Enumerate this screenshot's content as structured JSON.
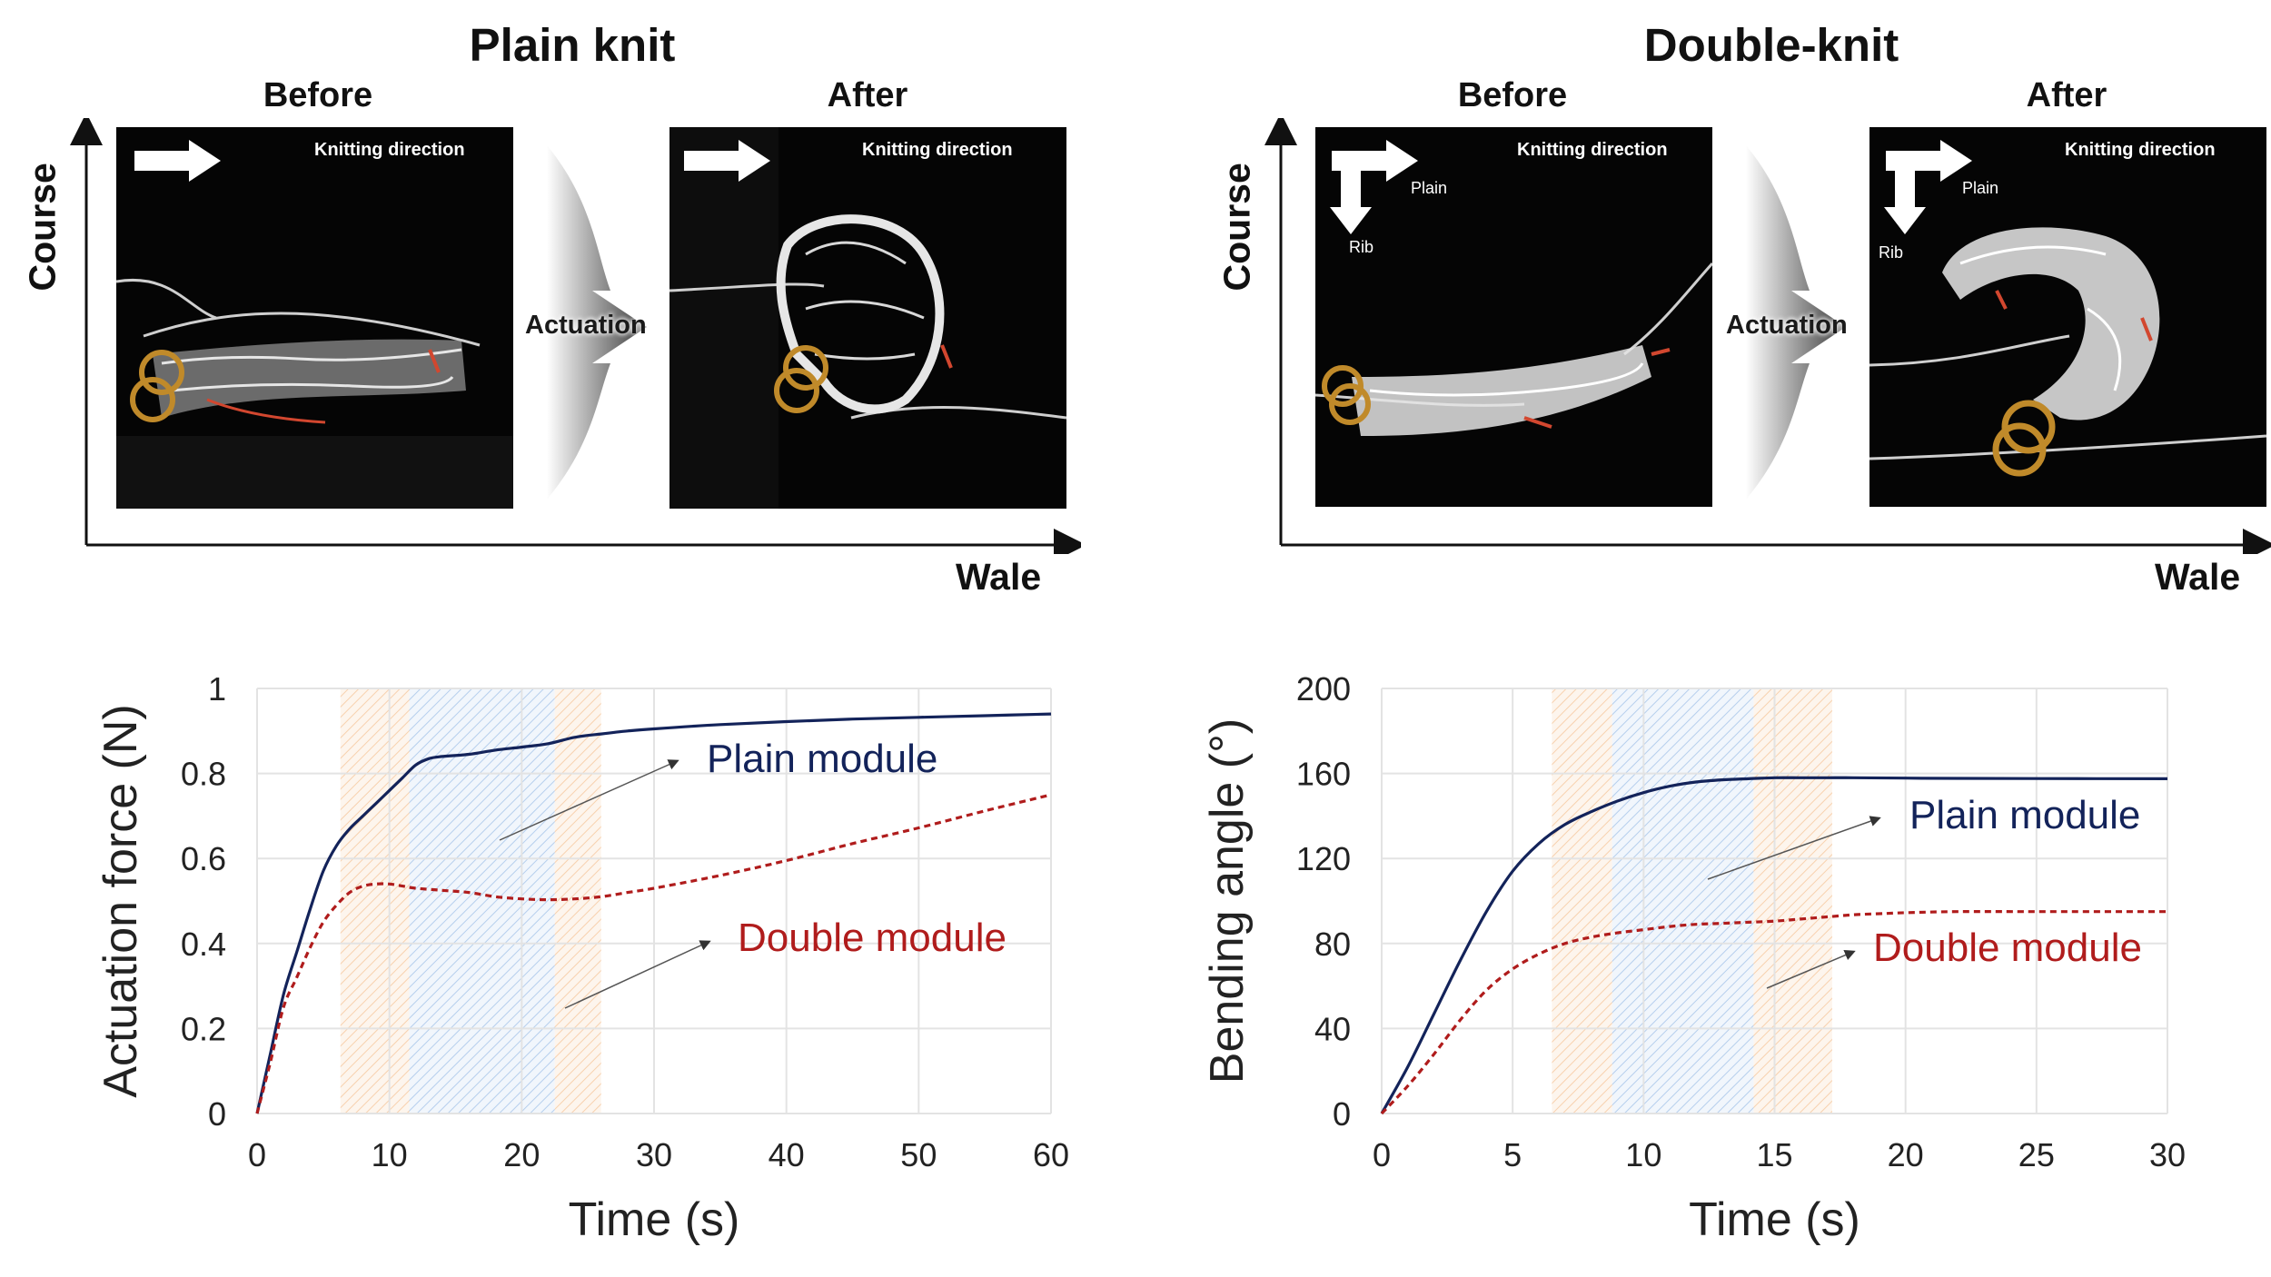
{
  "panels": [
    {
      "title": "Plain knit",
      "before_label": "Before",
      "after_label": "After",
      "course_label": "Course",
      "wale_label": "Wale",
      "actuation_label": "Actuation",
      "knitting_direction": "Knitting direction"
    },
    {
      "title": "Double-knit",
      "before_label": "Before",
      "after_label": "After",
      "course_label": "Course",
      "wale_label": "Wale",
      "actuation_label": "Actuation",
      "knitting_direction": "Knitting direction",
      "plain_label": "Plain",
      "rib_label": "Rib"
    }
  ],
  "colors": {
    "plain_series": "#13235a",
    "double_series": "#b01c1c",
    "band_orange": "#f6c9a0",
    "band_blue": "#a9c6ea",
    "grid": "#e3e3e3"
  },
  "chart_data": [
    {
      "type": "line",
      "xlabel": "Time (s)",
      "ylabel": "Actuation force (N)",
      "xlim": [
        0,
        60
      ],
      "ylim": [
        0,
        1
      ],
      "xticks": [
        0,
        10,
        20,
        30,
        40,
        50,
        60
      ],
      "yticks": [
        0,
        0.2,
        0.4,
        0.6,
        0.8,
        1
      ],
      "ytick_labels": [
        "0",
        "0.2",
        "0.4",
        "0.6",
        "0.8",
        "1"
      ],
      "grid": true,
      "bands": [
        {
          "x0": 6.3,
          "x1": 11.5,
          "color": "orange"
        },
        {
          "x0": 11.5,
          "x1": 22.5,
          "color": "blue"
        },
        {
          "x0": 22.5,
          "x1": 26,
          "color": "orange"
        }
      ],
      "series": [
        {
          "name": "Plain module",
          "style": "solid",
          "color_key": "plain_series",
          "x": [
            0,
            1,
            2,
            3,
            4,
            5,
            6,
            7,
            8,
            9,
            10,
            11,
            12,
            13,
            14,
            16,
            18,
            20,
            22,
            24,
            26,
            28,
            30,
            35,
            40,
            45,
            50,
            55,
            60
          ],
          "y": [
            0,
            0.14,
            0.28,
            0.38,
            0.48,
            0.57,
            0.63,
            0.67,
            0.7,
            0.73,
            0.76,
            0.79,
            0.82,
            0.835,
            0.84,
            0.845,
            0.855,
            0.862,
            0.87,
            0.885,
            0.893,
            0.9,
            0.905,
            0.915,
            0.922,
            0.928,
            0.932,
            0.936,
            0.94
          ]
        },
        {
          "name": "Double module",
          "style": "dashed",
          "color_key": "double_series",
          "x": [
            0,
            1,
            2,
            3,
            4,
            5,
            6,
            7,
            8,
            9,
            10,
            11,
            12,
            14,
            16,
            18,
            20,
            22,
            24,
            26,
            28,
            30,
            35,
            40,
            45,
            50,
            55,
            60
          ],
          "y": [
            0,
            0.12,
            0.25,
            0.32,
            0.39,
            0.45,
            0.49,
            0.52,
            0.535,
            0.54,
            0.54,
            0.535,
            0.53,
            0.525,
            0.52,
            0.51,
            0.505,
            0.503,
            0.505,
            0.51,
            0.52,
            0.53,
            0.56,
            0.595,
            0.635,
            0.672,
            0.712,
            0.75
          ]
        }
      ],
      "annotations": [
        {
          "text": "Plain module",
          "color_key": "plain_series"
        },
        {
          "text": "Double module",
          "color_key": "double_series"
        }
      ]
    },
    {
      "type": "line",
      "xlabel": "Time (s)",
      "ylabel": "Bending angle (°)",
      "xlim": [
        0,
        30
      ],
      "ylim": [
        0,
        200
      ],
      "xticks": [
        0,
        5,
        10,
        15,
        20,
        25,
        30
      ],
      "yticks": [
        0,
        40,
        80,
        120,
        160,
        200
      ],
      "ytick_labels": [
        "0",
        "40",
        "80",
        "120",
        "160",
        "200"
      ],
      "grid": true,
      "bands": [
        {
          "x0": 6.5,
          "x1": 8.8,
          "color": "orange"
        },
        {
          "x0": 8.8,
          "x1": 14.2,
          "color": "blue"
        },
        {
          "x0": 14.2,
          "x1": 17.2,
          "color": "orange"
        }
      ],
      "series": [
        {
          "name": "Plain module",
          "style": "solid",
          "color_key": "plain_series",
          "x": [
            0,
            1,
            2,
            3,
            4,
            5,
            6,
            7,
            8,
            9,
            10,
            11,
            12,
            13,
            14,
            15,
            16,
            17,
            18,
            20,
            22,
            25,
            30
          ],
          "y": [
            0,
            22,
            47,
            72,
            95,
            114,
            127,
            136,
            142,
            147,
            151,
            154,
            156,
            157,
            157.5,
            158,
            158,
            158,
            158,
            157.8,
            157.7,
            157.6,
            157.5
          ]
        },
        {
          "name": "Double module",
          "style": "dashed",
          "color_key": "double_series",
          "x": [
            0,
            1,
            2,
            3,
            4,
            5,
            6,
            7,
            8,
            9,
            10,
            11,
            12,
            13,
            14,
            15,
            16,
            17,
            18,
            19,
            20,
            22,
            25,
            30
          ],
          "y": [
            0,
            13,
            28,
            44,
            58,
            68,
            75,
            80,
            83,
            85,
            86.5,
            88,
            89,
            89.5,
            90,
            90.5,
            91.5,
            92.5,
            93.5,
            94,
            94.5,
            95,
            95,
            95
          ]
        }
      ],
      "annotations": [
        {
          "text": "Plain module",
          "color_key": "plain_series"
        },
        {
          "text": "Double module",
          "color_key": "double_series"
        }
      ]
    }
  ]
}
